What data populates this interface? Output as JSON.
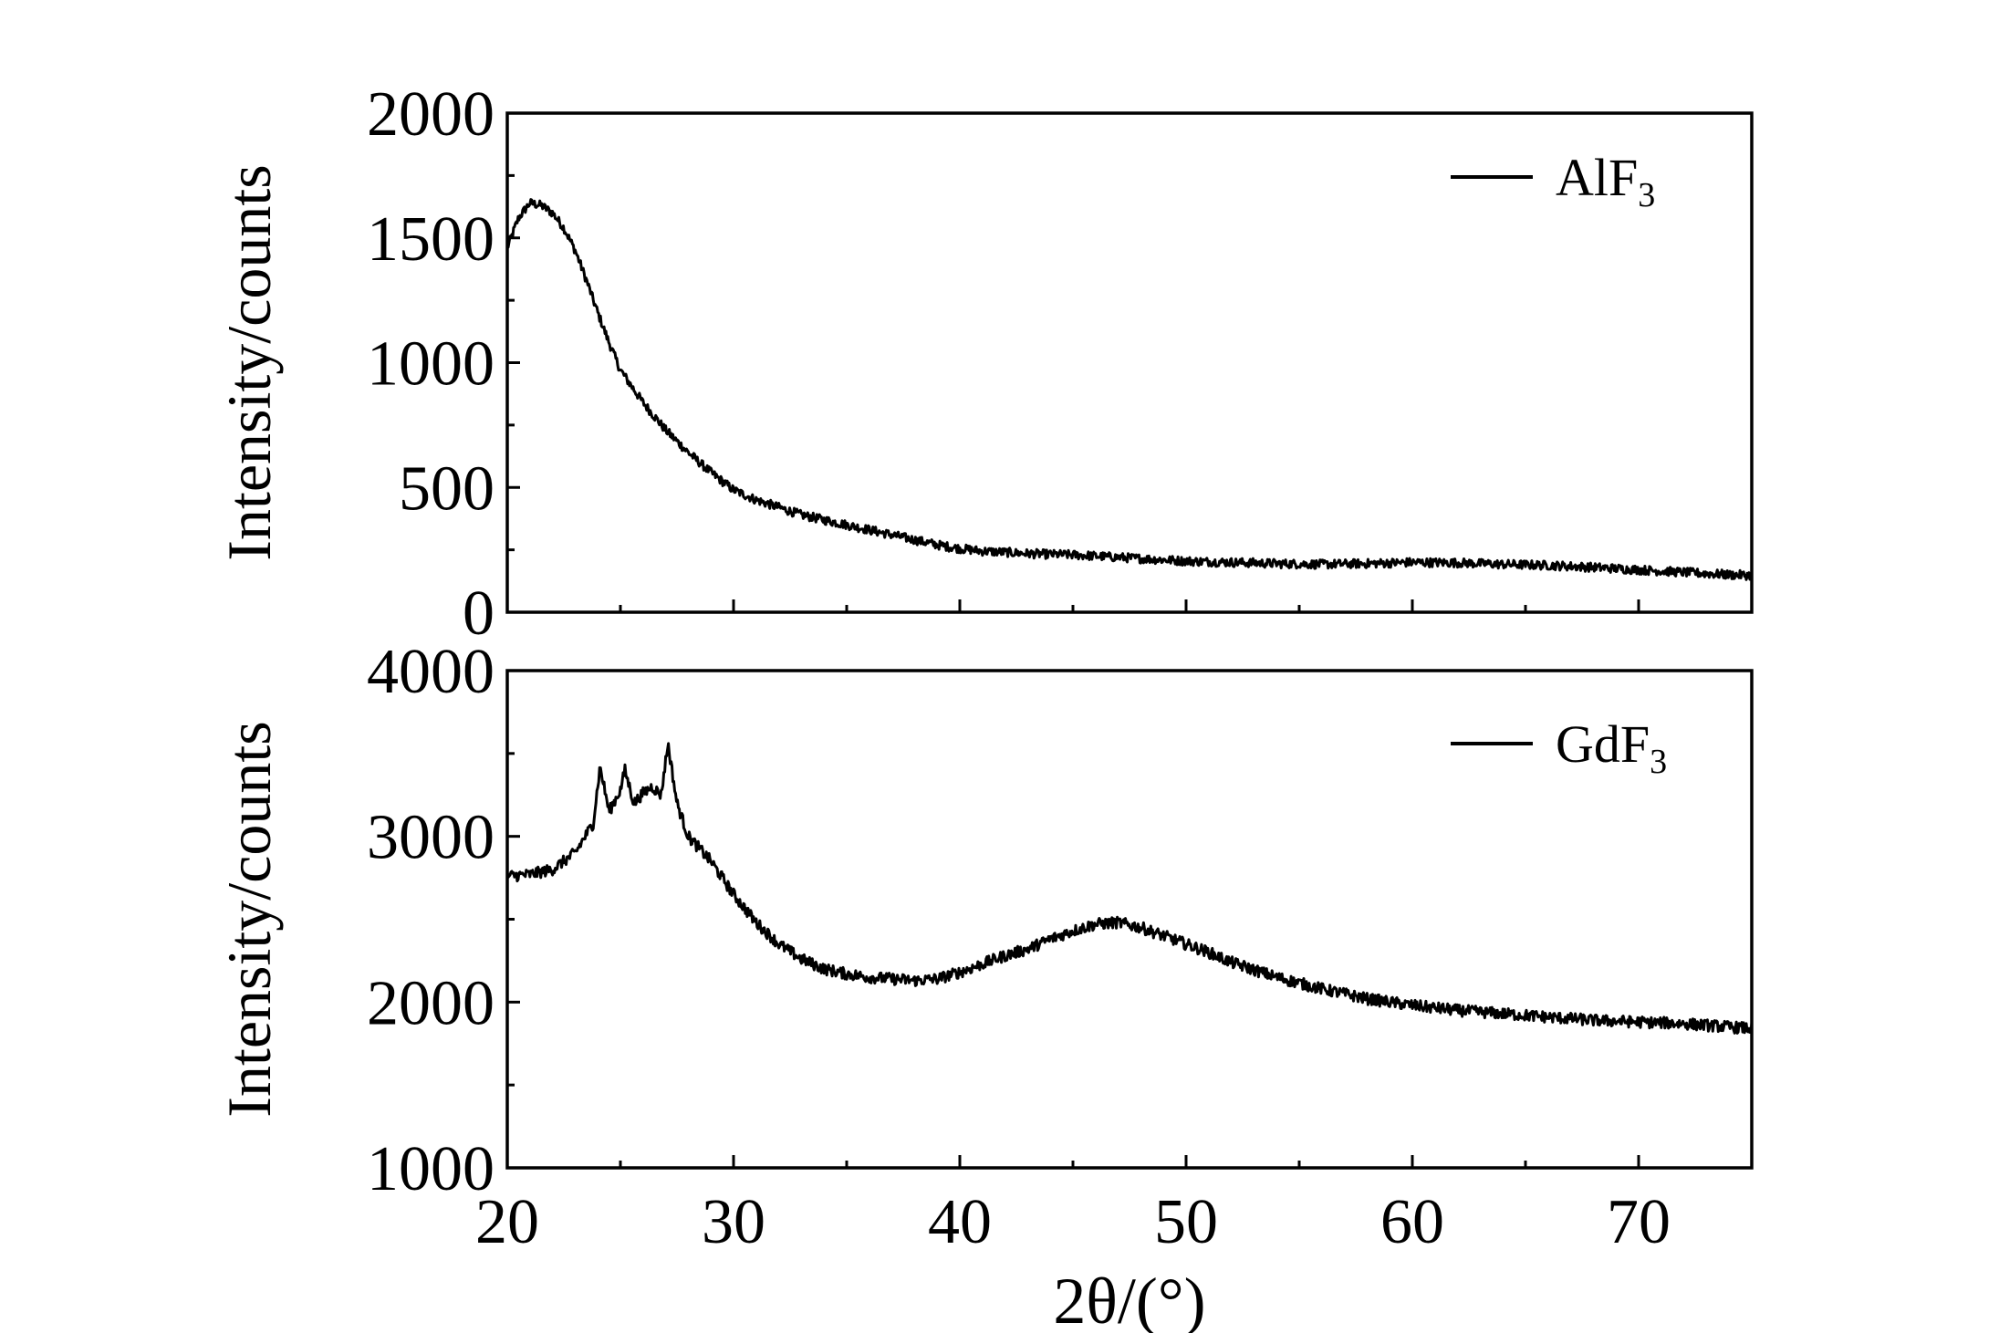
{
  "chart_data": [
    {
      "type": "line",
      "xlim": [
        20,
        75
      ],
      "ylim": [
        0,
        2000
      ],
      "yticks": [
        "0",
        "500",
        "1000",
        "1500",
        "2000"
      ],
      "xticks": [
        "20",
        "30",
        "40",
        "50",
        "60",
        "70"
      ],
      "ylabel": "Intensity/counts",
      "xlabel": "",
      "legend_position": "top-right",
      "series": [
        {
          "name": "AlF",
          "name_sub": "3",
          "color": "#000000",
          "x": [
            20,
            20.5,
            21,
            21.5,
            22,
            22.5,
            23,
            23.5,
            24,
            24.5,
            25,
            26,
            27,
            28,
            29,
            30,
            31,
            32,
            33,
            34,
            35,
            36,
            37,
            38,
            39,
            40,
            41,
            42,
            43,
            44,
            45,
            46,
            47,
            48,
            49,
            50,
            52,
            54,
            56,
            58,
            60,
            62,
            64,
            66,
            68,
            70,
            72,
            74,
            75
          ],
          "y": [
            1460,
            1580,
            1640,
            1630,
            1600,
            1540,
            1450,
            1330,
            1200,
            1080,
            970,
            840,
            730,
            640,
            560,
            490,
            450,
            420,
            390,
            370,
            350,
            330,
            310,
            290,
            270,
            255,
            245,
            240,
            235,
            232,
            230,
            225,
            220,
            215,
            210,
            205,
            200,
            195,
            192,
            195,
            200,
            198,
            192,
            188,
            180,
            170,
            160,
            150,
            148
          ],
          "noise": 18
        }
      ]
    },
    {
      "type": "line",
      "xlim": [
        20,
        75
      ],
      "ylim": [
        1000,
        4000
      ],
      "yticks": [
        "1000",
        "2000",
        "3000",
        "4000"
      ],
      "xticks": [
        "20",
        "30",
        "40",
        "50",
        "60",
        "70"
      ],
      "ylabel": "Intensity/counts",
      "xlabel": "2θ/(°)",
      "legend_position": "top-right",
      "series": [
        {
          "name": "GdF",
          "name_sub": "3",
          "color": "#000000",
          "x": [
            20,
            21,
            22,
            23,
            23.8,
            24.1,
            24.5,
            25.0,
            25.2,
            25.6,
            26.0,
            26.4,
            26.8,
            27.1,
            27.5,
            28,
            29,
            30,
            31,
            32,
            33,
            34,
            35,
            36,
            37,
            38,
            39,
            40,
            41,
            42,
            43,
            44,
            45,
            46,
            47,
            48,
            49,
            50,
            51,
            52,
            54,
            56,
            58,
            60,
            62,
            64,
            66,
            68,
            70,
            72,
            74,
            75
          ],
          "y": [
            2760,
            2770,
            2800,
            2900,
            3080,
            3420,
            3150,
            3280,
            3400,
            3200,
            3260,
            3300,
            3250,
            3560,
            3200,
            3000,
            2850,
            2650,
            2480,
            2350,
            2260,
            2200,
            2170,
            2150,
            2140,
            2130,
            2140,
            2180,
            2230,
            2280,
            2320,
            2380,
            2430,
            2470,
            2480,
            2450,
            2400,
            2350,
            2300,
            2240,
            2150,
            2080,
            2020,
            1980,
            1950,
            1930,
            1910,
            1890,
            1880,
            1870,
            1850,
            1840
          ],
          "noise": 35
        }
      ]
    }
  ]
}
